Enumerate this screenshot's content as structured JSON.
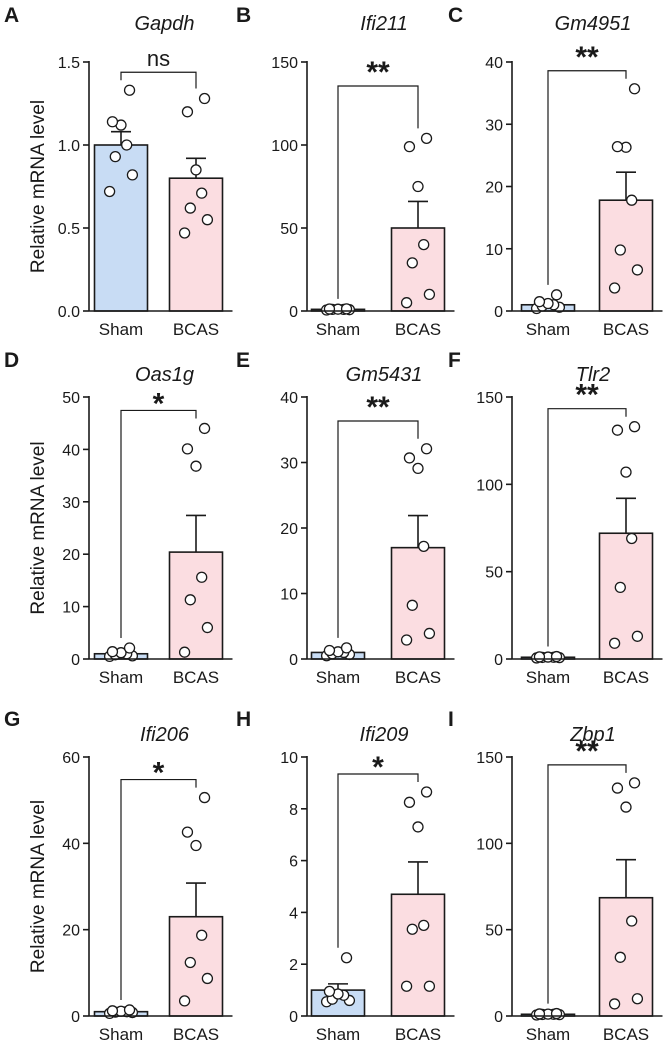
{
  "figure": {
    "ylabel": "Relative mRNA level",
    "categories": [
      "Sham",
      "BCAS"
    ]
  },
  "colors": {
    "sham_fill": "#c8dcf4",
    "bcas_fill": "#fbdde1",
    "ink": "#1a1a1a"
  },
  "chart_data": [
    {
      "type": "bar",
      "panel": "A",
      "title": "Gapdh",
      "ylabel": "Relative mRNA level",
      "categories": [
        "Sham",
        "BCAS"
      ],
      "ylim": [
        0,
        1.5
      ],
      "ticks": [
        0.0,
        0.5,
        1.0,
        1.5
      ],
      "tick_labels": [
        "0.0",
        "0.5",
        "1.0",
        "1.5"
      ],
      "means": [
        1.0,
        0.8
      ],
      "sem": [
        0.08,
        0.12
      ],
      "points": [
        [
          0.72,
          0.82,
          0.93,
          1.0,
          1.12,
          1.14,
          1.33
        ],
        [
          0.47,
          0.55,
          0.62,
          0.71,
          0.85,
          1.2,
          1.28
        ]
      ],
      "significance": "ns"
    },
    {
      "type": "bar",
      "panel": "B",
      "title": "Ifi211",
      "ylabel": "",
      "categories": [
        "Sham",
        "BCAS"
      ],
      "ylim": [
        0,
        150
      ],
      "ticks": [
        0,
        50,
        100,
        150
      ],
      "tick_labels": [
        "0",
        "50",
        "100",
        "150"
      ],
      "means": [
        1.0,
        50.0
      ],
      "sem": [
        0.3,
        16.0
      ],
      "points": [
        [
          0.6,
          0.8,
          1.0,
          1.0,
          1.1,
          1.2,
          1.3
        ],
        [
          5,
          10,
          29,
          40,
          75,
          99,
          104
        ]
      ],
      "significance": "**"
    },
    {
      "type": "bar",
      "panel": "C",
      "title": "Gm4951",
      "ylabel": "",
      "categories": [
        "Sham",
        "BCAS"
      ],
      "ylim": [
        0,
        40
      ],
      "ticks": [
        0,
        10,
        20,
        30,
        40
      ],
      "tick_labels": [
        "0",
        "10",
        "20",
        "30",
        "40"
      ],
      "means": [
        1.0,
        17.8
      ],
      "sem": [
        0.3,
        4.5
      ],
      "points": [
        [
          0.4,
          0.6,
          0.8,
          1.0,
          1.2,
          1.5,
          2.6
        ],
        [
          3.7,
          6.6,
          9.8,
          17.8,
          26.3,
          26.4,
          35.7
        ]
      ],
      "significance": "**"
    },
    {
      "type": "bar",
      "panel": "D",
      "title": "Oas1g",
      "ylabel": "Relative mRNA level",
      "categories": [
        "Sham",
        "BCAS"
      ],
      "ylim": [
        0,
        50
      ],
      "ticks": [
        0,
        10,
        20,
        30,
        40,
        50
      ],
      "tick_labels": [
        "0",
        "10",
        "20",
        "30",
        "40",
        "50"
      ],
      "means": [
        1.0,
        20.4
      ],
      "sem": [
        0.3,
        7.0
      ],
      "points": [
        [
          0.5,
          0.6,
          0.8,
          1.0,
          1.2,
          1.4,
          2.1
        ],
        [
          1.3,
          6.0,
          11.3,
          15.6,
          36.8,
          40.1,
          44.0
        ]
      ],
      "significance": "*"
    },
    {
      "type": "bar",
      "panel": "E",
      "title": "Gm5431",
      "ylabel": "",
      "categories": [
        "Sham",
        "BCAS"
      ],
      "ylim": [
        0,
        40
      ],
      "ticks": [
        0,
        10,
        20,
        30,
        40
      ],
      "tick_labels": [
        "0",
        "10",
        "20",
        "30",
        "40"
      ],
      "means": [
        1.0,
        17.0
      ],
      "sem": [
        0.25,
        4.9
      ],
      "points": [
        [
          0.5,
          0.7,
          0.8,
          1.0,
          1.1,
          1.3,
          1.7
        ],
        [
          2.9,
          3.9,
          8.2,
          17.2,
          29.1,
          30.7,
          32.1
        ]
      ],
      "significance": "**"
    },
    {
      "type": "bar",
      "panel": "F",
      "title": "Tlr2",
      "ylabel": "",
      "categories": [
        "Sham",
        "BCAS"
      ],
      "ylim": [
        0,
        150
      ],
      "ticks": [
        0,
        50,
        100,
        150
      ],
      "tick_labels": [
        "0",
        "50",
        "100",
        "150"
      ],
      "means": [
        1.0,
        72.0
      ],
      "sem": [
        0.3,
        20.0
      ],
      "points": [
        [
          0.6,
          0.8,
          0.9,
          1.0,
          1.1,
          1.2,
          1.4
        ],
        [
          9,
          13,
          41,
          69,
          107,
          131,
          133
        ]
      ],
      "significance": "**"
    },
    {
      "type": "bar",
      "panel": "G",
      "title": "Ifi206",
      "ylabel": "Relative mRNA level",
      "categories": [
        "Sham",
        "BCAS"
      ],
      "ylim": [
        0,
        60
      ],
      "ticks": [
        0,
        20,
        40,
        60
      ],
      "tick_labels": [
        "0",
        "20",
        "40",
        "60"
      ],
      "means": [
        1.0,
        23.0
      ],
      "sem": [
        0.2,
        7.8
      ],
      "points": [
        [
          0.6,
          0.8,
          0.9,
          1.0,
          1.1,
          1.2,
          1.4
        ],
        [
          3.5,
          8.7,
          12.4,
          18.7,
          39.5,
          42.6,
          50.6
        ]
      ],
      "significance": "*"
    },
    {
      "type": "bar",
      "panel": "H",
      "title": "Ifi209",
      "ylabel": "",
      "categories": [
        "Sham",
        "BCAS"
      ],
      "ylim": [
        0,
        10
      ],
      "ticks": [
        0,
        2,
        4,
        6,
        8,
        10
      ],
      "tick_labels": [
        "0",
        "2",
        "4",
        "6",
        "8",
        "10"
      ],
      "means": [
        1.0,
        4.7
      ],
      "sem": [
        0.24,
        1.25
      ],
      "points": [
        [
          0.55,
          0.6,
          0.65,
          0.8,
          0.85,
          0.95,
          2.25
        ],
        [
          1.15,
          1.15,
          3.35,
          3.5,
          7.3,
          8.25,
          8.65
        ]
      ],
      "significance": "*"
    },
    {
      "type": "bar",
      "panel": "I",
      "title": "Zbp1",
      "ylabel": "",
      "categories": [
        "Sham",
        "BCAS"
      ],
      "ylim": [
        0,
        150
      ],
      "ticks": [
        0,
        50,
        100,
        150
      ],
      "tick_labels": [
        "0",
        "50",
        "100",
        "150"
      ],
      "means": [
        1.0,
        68.5
      ],
      "sem": [
        0.3,
        22.0
      ],
      "points": [
        [
          0.6,
          0.8,
          0.9,
          1.0,
          1.1,
          1.2,
          1.4
        ],
        [
          7,
          10,
          34,
          55,
          121,
          132,
          135
        ]
      ],
      "significance": "**"
    }
  ]
}
